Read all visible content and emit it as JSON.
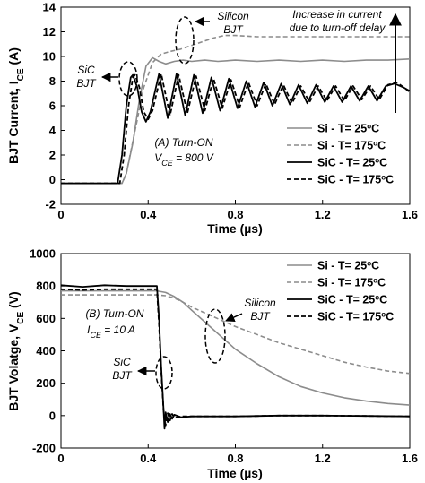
{
  "chart_data": [
    {
      "type": "line",
      "ylabel": "BJT Current, I_CE (A)",
      "ylabel_main": "BJT Current, I",
      "ylabel_sub": "CE",
      "ylabel_unit": " (A)",
      "xlabel": "Time (µs)",
      "xlim": [
        0,
        1.6
      ],
      "ylim": [
        -2,
        14
      ],
      "xticks": [
        "0",
        "0.4",
        "0.8",
        "1.2",
        "1.6"
      ],
      "yticks": [
        "-2",
        "0",
        "2",
        "4",
        "6",
        "8",
        "10",
        "12",
        "14"
      ],
      "grid": false,
      "legend_position": "bottom-right",
      "annotations": {
        "condition_line1": "(A) Turn-ON",
        "condition_line2_main": "V",
        "condition_line2_sub": "CE",
        "condition_line2_rest": " = 800 V",
        "silicon_line1": "Silicon",
        "silicon_line2": "BJT",
        "sic_line1": "SiC",
        "sic_line2": "BJT",
        "delay_line1": "Increase in current",
        "delay_line2": "due to turn-off delay"
      },
      "series": [
        {
          "name": "Si - T= 25oC",
          "legend_main": "Si  -  T= 25",
          "legend_sup": "o",
          "legend_end": "C",
          "color": "#8c8c8c",
          "dash": "solid",
          "x": [
            0,
            0.28,
            0.3,
            0.33,
            0.36,
            0.39,
            0.42,
            0.45,
            0.48,
            0.52,
            0.56,
            0.6,
            0.66,
            0.72,
            0.8,
            0.9,
            1.0,
            1.1,
            1.2,
            1.3,
            1.4,
            1.5,
            1.6
          ],
          "y": [
            -0.3,
            -0.3,
            0.5,
            3,
            6.5,
            9.2,
            9.9,
            9.6,
            9.4,
            9.6,
            9.7,
            9.6,
            9.7,
            9.6,
            9.7,
            9.6,
            9.7,
            9.6,
            9.7,
            9.6,
            9.7,
            9.7,
            9.8
          ]
        },
        {
          "name": "Si - T= 175oC",
          "legend_main": "Si  -  T= 175",
          "legend_sup": "o",
          "legend_end": "C",
          "color": "#8c8c8c",
          "dash": "dashed",
          "x": [
            0,
            0.28,
            0.3,
            0.34,
            0.38,
            0.42,
            0.46,
            0.5,
            0.55,
            0.6,
            0.65,
            0.7,
            0.75,
            0.8,
            0.9,
            1.0,
            1.1,
            1.2,
            1.3,
            1.4,
            1.5,
            1.6
          ],
          "y": [
            -0.3,
            -0.3,
            0.5,
            4,
            7.5,
            9.5,
            10.2,
            10.4,
            10.6,
            10.9,
            11.2,
            11.5,
            11.7,
            11.7,
            11.6,
            11.6,
            11.6,
            11.6,
            11.6,
            11.6,
            11.6,
            11.6
          ]
        },
        {
          "name": "SiC - T= 25oC",
          "legend_main": "SiC  -  T= 25",
          "legend_sup": "o",
          "legend_end": "C",
          "color": "#000000",
          "dash": "solid",
          "x": [
            0,
            0.26,
            0.28,
            0.3,
            0.32,
            0.33,
            0.35,
            0.37,
            0.39,
            0.41,
            0.45,
            0.49,
            0.53,
            0.57,
            0.61,
            0.65,
            0.69,
            0.73,
            0.77,
            0.81,
            0.85,
            0.89,
            0.93,
            0.97,
            1.01,
            1.05,
            1.09,
            1.13,
            1.17,
            1.21,
            1.25,
            1.29,
            1.33,
            1.37,
            1.41,
            1.45,
            1.49,
            1.53,
            1.57,
            1.6
          ],
          "y": [
            -0.3,
            -0.3,
            2,
            6,
            8.3,
            8.5,
            7.5,
            5.5,
            4.7,
            5.5,
            8.6,
            5,
            8.6,
            5.2,
            8.5,
            5.4,
            8.3,
            5.6,
            8.2,
            5.8,
            8,
            5.9,
            7.9,
            6,
            7.8,
            6.1,
            7.7,
            6.2,
            7.7,
            6.3,
            7.6,
            6.3,
            7.6,
            6.4,
            7.6,
            6.4,
            7.6,
            7.8,
            7.5,
            7.2
          ]
        },
        {
          "name": "SiC - T= 175oC",
          "legend_main": "SiC  -  T= 175",
          "legend_sup": "o",
          "legend_end": "C",
          "color": "#000000",
          "dash": "dashed",
          "x": [
            0,
            0.27,
            0.29,
            0.31,
            0.33,
            0.34,
            0.36,
            0.38,
            0.4,
            0.42,
            0.46,
            0.5,
            0.54,
            0.58,
            0.62,
            0.66,
            0.7,
            0.74,
            0.78,
            0.82,
            0.86,
            0.9,
            0.94,
            0.98,
            1.02,
            1.06,
            1.1,
            1.14,
            1.18,
            1.22,
            1.26,
            1.3,
            1.34,
            1.38,
            1.42,
            1.46,
            1.5,
            1.54,
            1.58,
            1.6
          ],
          "y": [
            -0.3,
            -0.3,
            2,
            6,
            8.3,
            8.5,
            7.5,
            5.5,
            4.9,
            5.6,
            8.6,
            5.2,
            8.5,
            5.4,
            8.4,
            5.6,
            8.2,
            5.8,
            8.1,
            5.9,
            7.9,
            6,
            7.8,
            6.1,
            7.7,
            6.2,
            7.6,
            6.3,
            7.6,
            6.4,
            7.6,
            6.4,
            7.6,
            6.5,
            7.6,
            6.5,
            7.7,
            7.9,
            7.4,
            7.1
          ]
        }
      ]
    },
    {
      "type": "line",
      "ylabel": "BJT Volatge, V_CE (V)",
      "ylabel_main": "BJT Volatge, V",
      "ylabel_sub": "CE",
      "ylabel_unit": " (V)",
      "xlabel": "Time (µs)",
      "xlim": [
        0,
        1.6
      ],
      "ylim": [
        -200,
        1000
      ],
      "xticks": [
        "0",
        "0.4",
        "0.8",
        "1.2",
        "1.6"
      ],
      "yticks": [
        "-200",
        "0",
        "200",
        "400",
        "600",
        "800",
        "1000"
      ],
      "grid": false,
      "legend_position": "top-right",
      "annotations": {
        "condition_line1": "(B) Turn-ON",
        "condition_line2_main": "I",
        "condition_line2_sub": "CE",
        "condition_line2_rest": " = 10 A",
        "silicon_line1": "Silicon",
        "silicon_line2": "BJT",
        "sic_line1": "SiC",
        "sic_line2": "BJT"
      },
      "series": [
        {
          "name": "Si - T= 25oC",
          "legend_main": "Si  -  T= 25",
          "legend_sup": "o",
          "legend_end": "C",
          "color": "#8c8c8c",
          "dash": "solid",
          "x": [
            0,
            0.44,
            0.48,
            0.52,
            0.56,
            0.6,
            0.65,
            0.7,
            0.75,
            0.8,
            0.9,
            1.0,
            1.1,
            1.2,
            1.3,
            1.4,
            1.5,
            1.6
          ],
          "y": [
            770,
            770,
            760,
            735,
            700,
            650,
            590,
            530,
            470,
            410,
            320,
            240,
            180,
            140,
            110,
            90,
            75,
            65
          ]
        },
        {
          "name": "Si - T= 175oC",
          "legend_main": "Si  -  T= 175",
          "legend_sup": "o",
          "legend_end": "C",
          "color": "#8c8c8c",
          "dash": "dashed",
          "x": [
            0,
            0.44,
            0.48,
            0.52,
            0.56,
            0.6,
            0.65,
            0.7,
            0.75,
            0.8,
            0.9,
            1.0,
            1.1,
            1.2,
            1.3,
            1.4,
            1.5,
            1.6
          ],
          "y": [
            745,
            745,
            740,
            725,
            700,
            670,
            640,
            610,
            580,
            550,
            500,
            450,
            410,
            370,
            330,
            300,
            275,
            260
          ]
        },
        {
          "name": "SiC - T= 25oC",
          "legend_main": "SiC  -  T= 25",
          "legend_sup": "o",
          "legend_end": "C",
          "color": "#000000",
          "dash": "solid",
          "x": [
            0,
            0.1,
            0.2,
            0.3,
            0.44,
            0.45,
            0.46,
            0.47,
            0.475,
            0.48,
            0.49,
            0.5,
            0.51,
            0.52,
            0.55,
            0.6,
            0.8,
            1.0,
            1.2,
            1.4,
            1.6
          ],
          "y": [
            805,
            795,
            805,
            800,
            800,
            600,
            300,
            50,
            -80,
            20,
            -40,
            10,
            -20,
            5,
            -10,
            -5,
            -5,
            0,
            0,
            -2,
            -5
          ]
        },
        {
          "name": "SiC - T= 175oC",
          "legend_main": "SiC  -  T= 175",
          "legend_sup": "o",
          "legend_end": "C",
          "color": "#000000",
          "dash": "dashed",
          "x": [
            0,
            0.1,
            0.2,
            0.3,
            0.44,
            0.45,
            0.46,
            0.47,
            0.48,
            0.49,
            0.5,
            0.51,
            0.52,
            0.55,
            0.6,
            0.8,
            1.0,
            1.2,
            1.4,
            1.6
          ],
          "y": [
            780,
            775,
            780,
            780,
            780,
            560,
            280,
            40,
            -60,
            15,
            -30,
            10,
            -15,
            -5,
            -5,
            -5,
            0,
            0,
            -2,
            -5
          ]
        }
      ]
    }
  ]
}
